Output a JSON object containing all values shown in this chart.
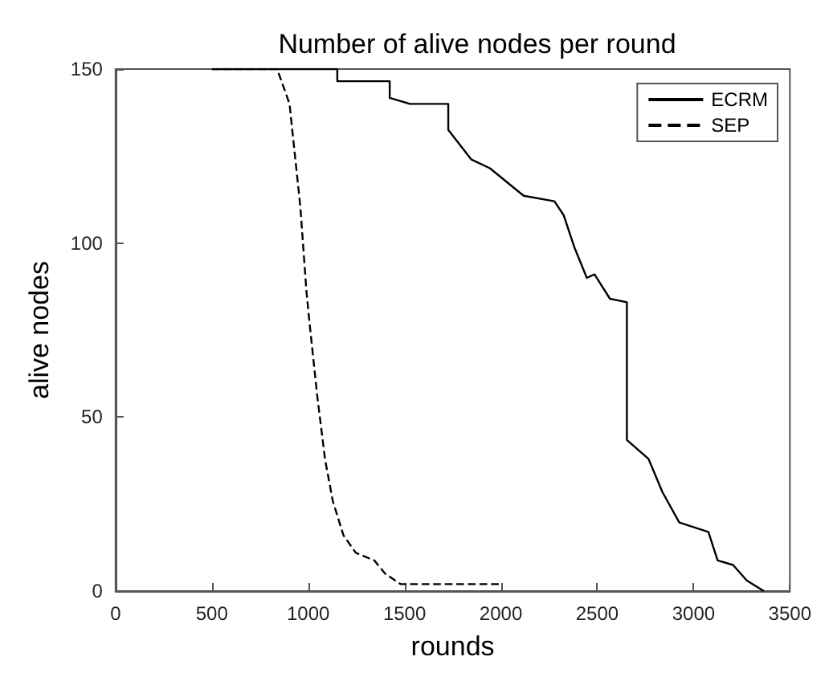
{
  "chart_data": {
    "type": "line",
    "title": "Number of alive nodes per round",
    "xlabel": "rounds",
    "ylabel": "alive nodes",
    "xlim": [
      0,
      3500
    ],
    "ylim": [
      0,
      150
    ],
    "xticks": [
      0,
      500,
      1000,
      1500,
      2000,
      2500,
      3000,
      3500
    ],
    "yticks": [
      0,
      50,
      100,
      150
    ],
    "grid": false,
    "legend": "top right",
    "marker": "none",
    "series": [
      {
        "name": "ECRM",
        "color": "#000000",
        "line_style": "solid",
        "x": [
          500,
          1151,
          1151,
          1423,
          1423,
          1527,
          1727,
          1727,
          1847,
          1943,
          2118,
          2278,
          2326,
          2382,
          2446,
          2486,
          2566,
          2654,
          2654,
          2766,
          2838,
          2926,
          3077,
          3125,
          3205,
          3277,
          3365
        ],
        "values": [
          150,
          150,
          146.5,
          146.5,
          141.7,
          140,
          140,
          132.5,
          124,
          121.5,
          113.6,
          112,
          108,
          98.7,
          90,
          91,
          84,
          83,
          43.4,
          38,
          28.5,
          19.7,
          17,
          8.8,
          7.5,
          3,
          0
        ]
      },
      {
        "name": "SEP",
        "color": "#000000",
        "line_style": "dashed",
        "x": [
          500,
          839,
          903,
          959,
          991,
          1007,
          1047,
          1087,
          1127,
          1183,
          1247,
          1343,
          1399,
          1479,
          2000
        ],
        "values": [
          150,
          150,
          140,
          110.5,
          86,
          77,
          56,
          38,
          26,
          16,
          11,
          8.8,
          5,
          2,
          2
        ]
      }
    ]
  }
}
